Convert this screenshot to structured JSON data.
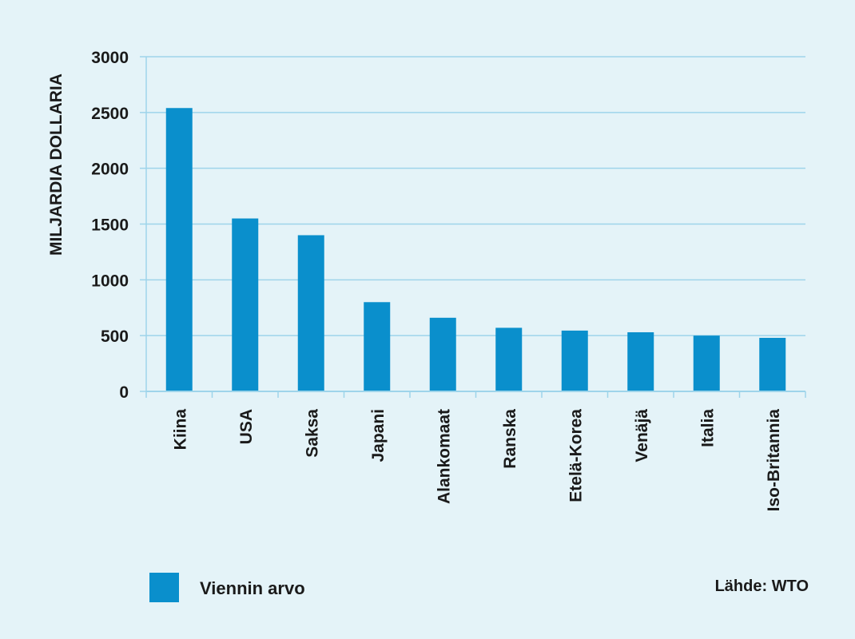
{
  "chart_data": {
    "type": "bar",
    "categories": [
      "Kiina",
      "USA",
      "Saksa",
      "Japani",
      "Alankomaat",
      "Ranska",
      "Etelä-Korea",
      "Venäjä",
      "Italia",
      "Iso-Britannia"
    ],
    "series": [
      {
        "name": "Viennin arvo",
        "values": [
          2540,
          1550,
          1400,
          800,
          660,
          570,
          545,
          530,
          500,
          480
        ]
      }
    ],
    "ylabel": "MILJARDIA DOLLARIA",
    "ylim": [
      0,
      3000
    ],
    "yticks": [
      0,
      500,
      1000,
      1500,
      2000,
      2500,
      3000
    ],
    "grid": true,
    "legend_position": "bottom-left",
    "bar_color": "#0a8fcc",
    "grid_color": "#9ed4ea",
    "source": "Lähde: WTO"
  }
}
